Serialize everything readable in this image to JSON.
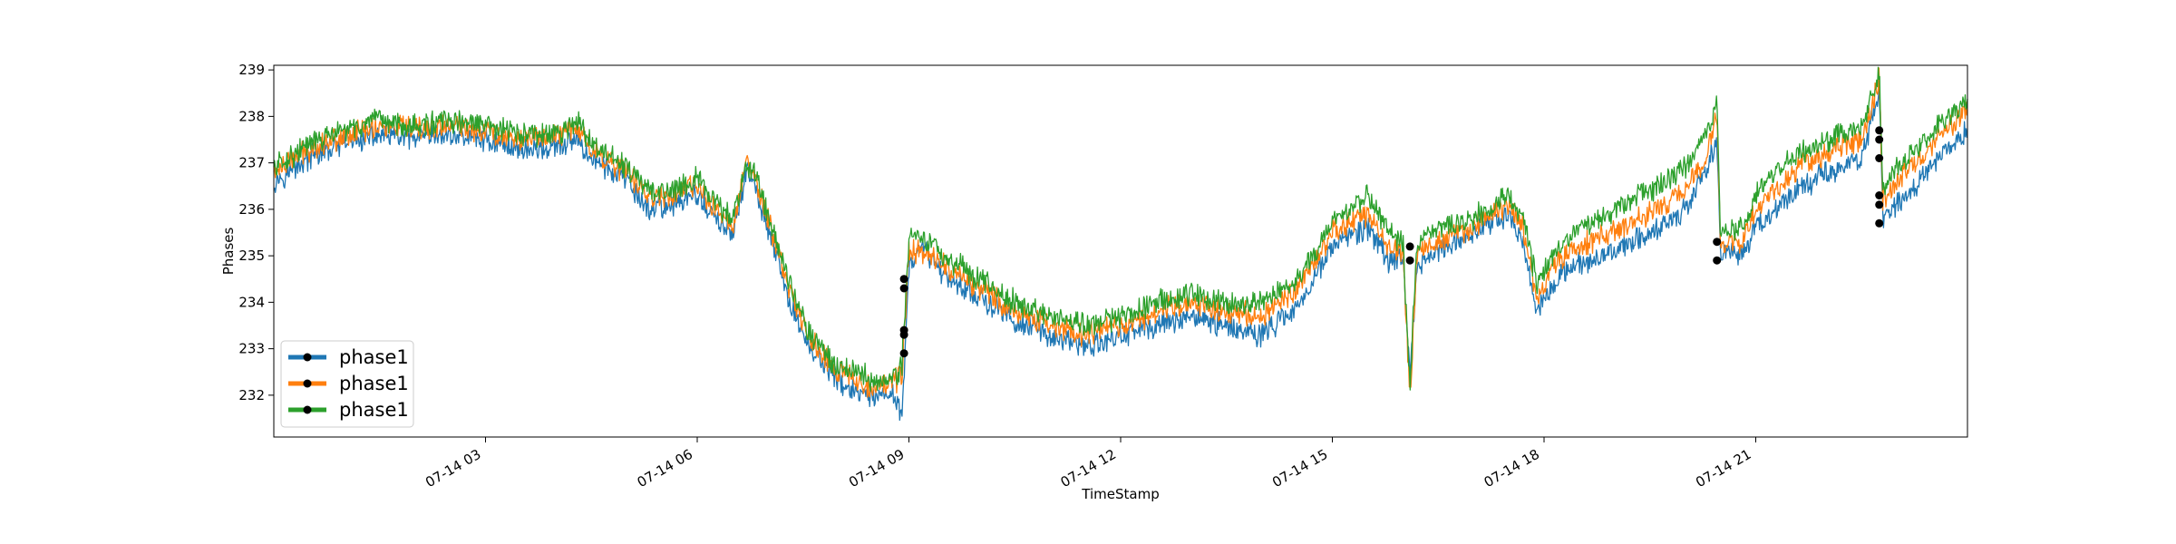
{
  "chart_data": {
    "type": "line",
    "title": "",
    "xlabel": "TimeStamp",
    "ylabel": "Phases",
    "x_unit": "hours on 07-14",
    "xlim": [
      0,
      24
    ],
    "ylim": [
      231.1,
      239.1
    ],
    "x_ticks": [
      {
        "x": 3,
        "label": "07-14 03"
      },
      {
        "x": 6,
        "label": "07-14 06"
      },
      {
        "x": 9,
        "label": "07-14 09"
      },
      {
        "x": 12,
        "label": "07-14 12"
      },
      {
        "x": 15,
        "label": "07-14 15"
      },
      {
        "x": 18,
        "label": "07-14 18"
      },
      {
        "x": 21,
        "label": "07-14 21"
      }
    ],
    "y_ticks": [
      232,
      233,
      234,
      235,
      236,
      237,
      238,
      239
    ],
    "grid": false,
    "legend_position": "lower-left",
    "colors": {
      "phase_a": "#1f77b4",
      "phase_b": "#ff7f0e",
      "phase_c": "#2ca02c",
      "marker": "#000000"
    },
    "series": [
      {
        "name": "phase1",
        "color": "#1f77b4",
        "x": [
          0,
          0.5,
          1,
          1.5,
          2,
          2.5,
          3,
          3.5,
          4,
          4.3,
          4.5,
          5,
          5.3,
          5.6,
          6,
          6.2,
          6.5,
          6.7,
          6.8,
          7,
          7.3,
          7.6,
          8,
          8.3,
          8.5,
          8.8,
          8.9,
          9.0,
          9.2,
          9.5,
          10,
          10.5,
          11,
          11.5,
          12,
          12.5,
          13,
          13.5,
          14,
          14.5,
          15,
          15.5,
          15.8,
          16.0,
          16.1,
          16.2,
          16.5,
          17,
          17.5,
          17.7,
          17.9,
          18.2,
          18.5,
          19,
          19.5,
          20,
          20.3,
          20.45,
          20.5,
          20.8,
          21,
          21.5,
          22,
          22.5,
          22.75,
          22.8,
          23,
          23.5,
          24
        ],
        "values": [
          236.6,
          237.1,
          237.4,
          237.6,
          237.5,
          237.6,
          237.5,
          237.3,
          237.3,
          237.5,
          237.1,
          236.6,
          236.0,
          236.1,
          236.3,
          235.9,
          235.4,
          236.9,
          236.5,
          235.6,
          234.0,
          233.0,
          232.3,
          232.0,
          231.9,
          232.0,
          231.6,
          234.7,
          235.2,
          234.6,
          234.1,
          233.6,
          233.3,
          233.0,
          233.3,
          233.5,
          233.7,
          233.5,
          233.3,
          233.9,
          235.2,
          235.6,
          234.9,
          234.9,
          232.4,
          234.8,
          235.1,
          235.5,
          235.9,
          235.3,
          233.8,
          234.6,
          234.8,
          235.1,
          235.5,
          236.0,
          236.8,
          237.5,
          235.1,
          235.0,
          235.6,
          236.3,
          236.8,
          237.1,
          238.6,
          235.8,
          236.1,
          236.9,
          237.7
        ]
      },
      {
        "name": "phase1",
        "color": "#ff7f0e",
        "x": [
          0,
          0.5,
          1,
          1.5,
          2,
          2.5,
          3,
          3.5,
          4,
          4.3,
          4.5,
          5,
          5.3,
          5.6,
          6,
          6.2,
          6.5,
          6.7,
          6.8,
          7,
          7.3,
          7.6,
          8,
          8.3,
          8.5,
          8.8,
          8.9,
          9.0,
          9.2,
          9.5,
          10,
          10.5,
          11,
          11.5,
          12,
          12.5,
          13,
          13.5,
          14,
          14.5,
          15,
          15.5,
          15.8,
          16.0,
          16.1,
          16.2,
          16.5,
          17,
          17.5,
          17.7,
          17.9,
          18.2,
          18.5,
          19,
          19.5,
          20,
          20.3,
          20.45,
          20.5,
          20.8,
          21,
          21.5,
          22,
          22.5,
          22.75,
          22.8,
          23,
          23.5,
          24
        ],
        "values": [
          236.8,
          237.3,
          237.6,
          237.8,
          237.7,
          237.8,
          237.7,
          237.5,
          237.6,
          237.8,
          237.3,
          236.8,
          236.3,
          236.3,
          236.5,
          236.1,
          235.6,
          237.1,
          236.7,
          235.8,
          234.3,
          233.2,
          232.5,
          232.3,
          232.2,
          232.3,
          232.4,
          235.1,
          235.1,
          234.8,
          234.3,
          233.8,
          233.5,
          233.3,
          233.5,
          233.8,
          234.0,
          233.8,
          233.7,
          234.3,
          235.5,
          235.9,
          235.2,
          235.1,
          232.0,
          235.1,
          235.3,
          235.6,
          236.1,
          235.6,
          234.0,
          234.9,
          235.2,
          235.5,
          235.9,
          236.4,
          237.2,
          238.1,
          235.3,
          235.3,
          236.0,
          236.8,
          237.2,
          237.5,
          238.8,
          236.2,
          236.6,
          237.4,
          238.2
        ]
      },
      {
        "name": "phase1",
        "color": "#2ca02c",
        "x": [
          0,
          0.5,
          1,
          1.5,
          2,
          2.5,
          3,
          3.5,
          4,
          4.3,
          4.5,
          5,
          5.3,
          5.6,
          6,
          6.2,
          6.5,
          6.7,
          6.8,
          7,
          7.3,
          7.6,
          8,
          8.3,
          8.5,
          8.8,
          8.9,
          9.0,
          9.2,
          9.5,
          10,
          10.5,
          11,
          11.5,
          12,
          12.5,
          13,
          13.5,
          14,
          14.5,
          15,
          15.5,
          15.8,
          16.0,
          16.1,
          16.2,
          16.5,
          17,
          17.5,
          17.7,
          17.9,
          18.2,
          18.5,
          19,
          19.5,
          20,
          20.3,
          20.45,
          20.5,
          20.8,
          21,
          21.5,
          22,
          22.5,
          22.75,
          22.8,
          23,
          23.5,
          24
        ],
        "values": [
          236.9,
          237.4,
          237.7,
          237.9,
          237.8,
          237.9,
          237.8,
          237.6,
          237.6,
          237.9,
          237.4,
          236.9,
          236.4,
          236.4,
          236.7,
          236.2,
          235.8,
          237.0,
          236.8,
          235.9,
          234.5,
          233.3,
          232.6,
          232.5,
          232.3,
          232.4,
          232.6,
          235.4,
          235.4,
          235.0,
          234.5,
          234.0,
          233.7,
          233.5,
          233.7,
          234.0,
          234.2,
          234.0,
          234.0,
          234.5,
          235.7,
          236.3,
          235.5,
          235.3,
          232.2,
          235.3,
          235.6,
          235.8,
          236.3,
          235.8,
          234.4,
          235.2,
          235.6,
          236.0,
          236.4,
          236.9,
          237.6,
          238.3,
          235.5,
          235.6,
          236.3,
          237.1,
          237.5,
          237.8,
          238.9,
          236.4,
          236.9,
          237.7,
          238.4
        ]
      }
    ],
    "markers": {
      "x": [
        8.93,
        8.93,
        8.93,
        8.93,
        8.93,
        16.1,
        16.1,
        20.45,
        20.45,
        22.75,
        22.75,
        22.75,
        22.75,
        22.75,
        22.75
      ],
      "values": [
        232.9,
        233.3,
        233.4,
        234.3,
        234.5,
        234.9,
        235.2,
        234.9,
        235.3,
        235.7,
        236.1,
        236.3,
        237.1,
        237.5,
        237.7
      ]
    },
    "legend": [
      {
        "label": "phase1",
        "color": "#1f77b4"
      },
      {
        "label": "phase1",
        "color": "#ff7f0e"
      },
      {
        "label": "phase1",
        "color": "#2ca02c"
      }
    ]
  }
}
